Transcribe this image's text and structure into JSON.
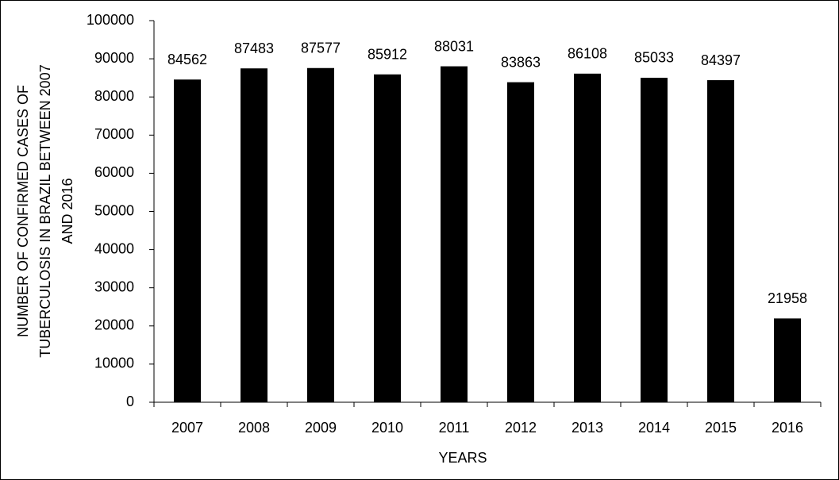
{
  "chart_data": {
    "type": "bar",
    "y_label_lines": [
      "NUMBER OF CONFIRMED CASES OF",
      "TUBERCULOSIS IN BRAZIL BETWEEN 2007",
      "AND 2016"
    ],
    "x_label": "YEARS",
    "categories": [
      "2007",
      "2008",
      "2009",
      "2010",
      "2011",
      "2012",
      "2013",
      "2014",
      "2015",
      "2016"
    ],
    "values": [
      84562,
      87483,
      87577,
      85912,
      88031,
      83863,
      86108,
      85033,
      84397,
      21958
    ],
    "color": "#000000",
    "ylim": [
      0,
      100000
    ],
    "yticks": [
      0,
      10000,
      20000,
      30000,
      40000,
      50000,
      60000,
      70000,
      80000,
      90000,
      100000
    ],
    "grid": false
  }
}
